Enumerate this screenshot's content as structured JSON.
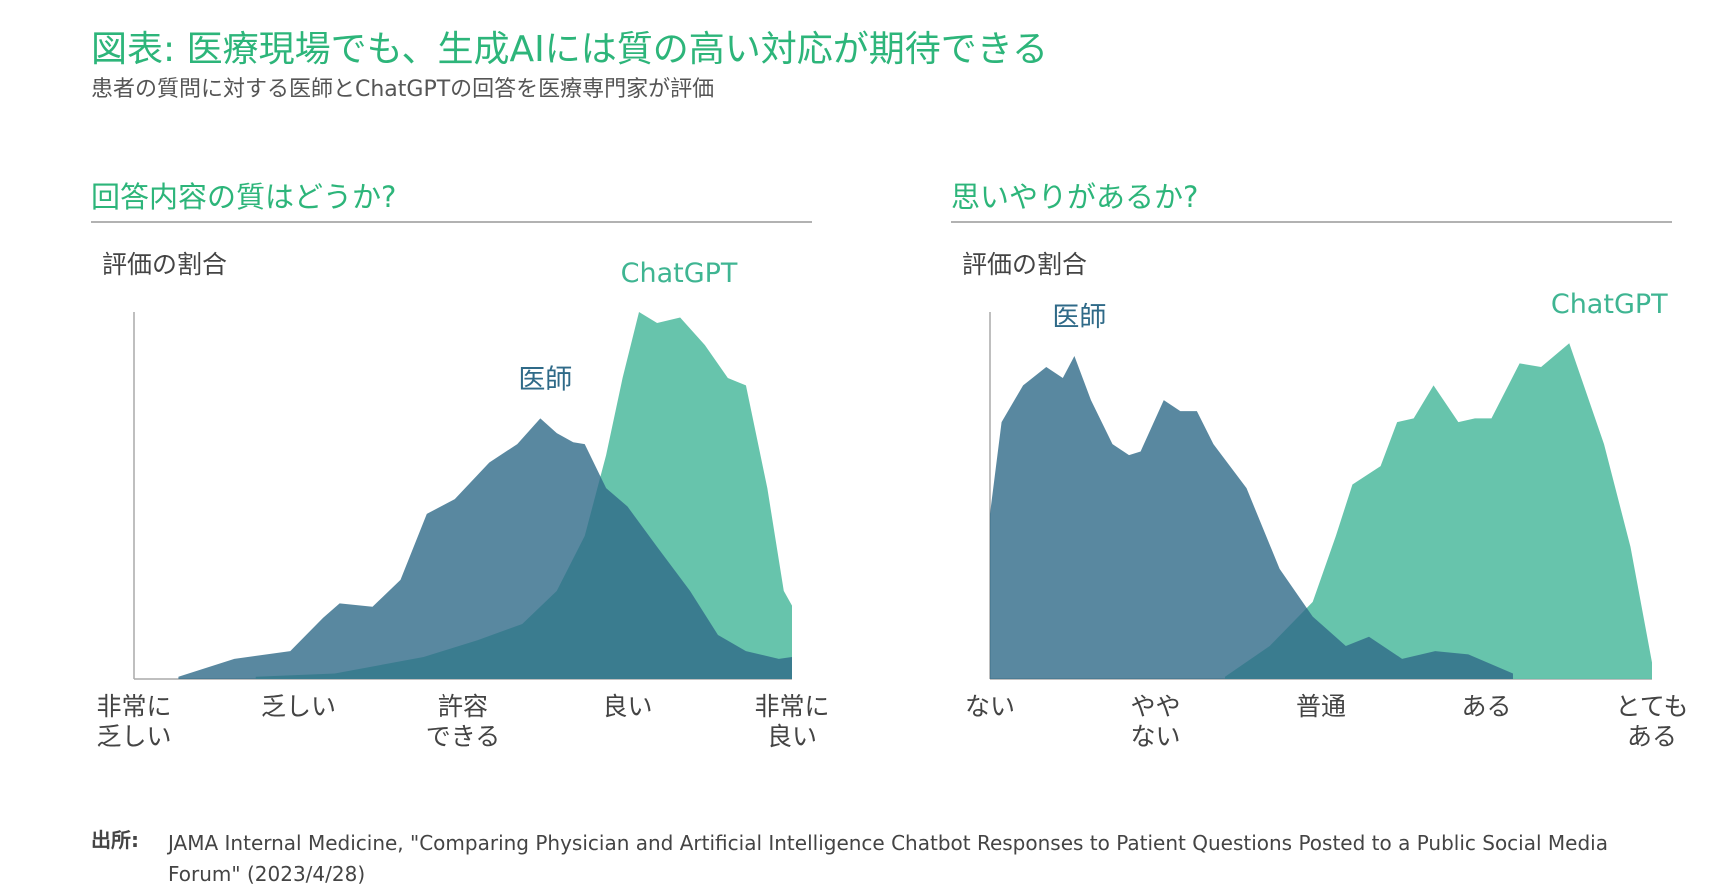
{
  "header": {
    "title": "図表: 医療現場でも、生成AIには質の高い対応が期待できる",
    "subtitle": "患者の質問に対する医師とChatGPTの回答を医療専門家が評価"
  },
  "chart_data": [
    {
      "type": "area",
      "title": "回答内容の質はどうか?",
      "ylabel": "評価の割合",
      "xlim": [
        1,
        5
      ],
      "ylim": [
        0,
        100
      ],
      "xticks": [
        {
          "value": 1,
          "label": "非常に\n乏しい"
        },
        {
          "value": 2,
          "label": "乏しい"
        },
        {
          "value": 3,
          "label": "許容\nできる"
        },
        {
          "value": 4,
          "label": "良い"
        },
        {
          "value": 5,
          "label": "非常に\n良い"
        }
      ],
      "series": [
        {
          "name": "ChatGPT",
          "color": "#5fc1a8",
          "x": [
            1.74,
            2.22,
            2.76,
            3.09,
            3.36,
            3.57,
            3.74,
            3.87,
            3.97,
            4.07,
            4.18,
            4.32,
            4.47,
            4.61,
            4.72,
            4.85,
            4.95,
            5.0
          ],
          "values": [
            0.6,
            1.5,
            6,
            10.6,
            15,
            24,
            39,
            61,
            82,
            100,
            97,
            98.5,
            91,
            82,
            80,
            52,
            24,
            20
          ]
        },
        {
          "name": "医師",
          "color": "#2f6a88",
          "x": [
            1.27,
            1.61,
            1.95,
            2.15,
            2.25,
            2.45,
            2.62,
            2.78,
            2.95,
            3.16,
            3.33,
            3.47,
            3.57,
            3.67,
            3.74,
            3.87,
            4.0,
            4.18,
            4.38,
            4.55,
            4.72,
            4.92,
            5.0
          ],
          "values": [
            0.6,
            5.5,
            7.6,
            16.7,
            20.6,
            19.7,
            27,
            45,
            49,
            59,
            64,
            71,
            67,
            64.5,
            64,
            52,
            47,
            36,
            24,
            12,
            7.6,
            5.5,
            6
          ]
        }
      ]
    },
    {
      "type": "area",
      "title": "思いやりがあるか?",
      "ylabel": "評価の割合",
      "xlim": [
        1,
        5
      ],
      "ylim": [
        0,
        100
      ],
      "xticks": [
        {
          "value": 1,
          "label": "ない"
        },
        {
          "value": 2,
          "label": "やや\nない"
        },
        {
          "value": 3,
          "label": "普通"
        },
        {
          "value": 4,
          "label": "ある"
        },
        {
          "value": 5,
          "label": "とても\nある"
        }
      ],
      "series": [
        {
          "name": "ChatGPT",
          "color": "#5fc1a8",
          "x": [
            2.42,
            2.69,
            2.95,
            3.09,
            3.19,
            3.36,
            3.46,
            3.56,
            3.68,
            3.83,
            3.93,
            4.03,
            4.2,
            4.33,
            4.5,
            4.71,
            4.87,
            5.0
          ],
          "values": [
            0.6,
            9,
            21,
            39,
            53,
            58,
            70,
            71,
            80,
            70,
            71,
            71,
            86,
            85,
            91.5,
            64,
            36,
            4.5
          ]
        },
        {
          "name": "医師",
          "color": "#2f6a88",
          "x": [
            1,
            1.07,
            1.2,
            1.34,
            1.44,
            1.51,
            1.61,
            1.74,
            1.84,
            1.91,
            2.05,
            2.15,
            2.25,
            2.35,
            2.55,
            2.75,
            2.95,
            3.15,
            3.29,
            3.49,
            3.69,
            3.89,
            4.16
          ],
          "values": [
            45,
            70,
            80,
            85,
            82,
            88,
            76,
            64,
            61,
            62,
            76,
            73,
            73,
            64,
            52,
            30,
            17,
            9,
            11.5,
            5.5,
            7.6,
            6.7,
            1.5
          ]
        }
      ]
    }
  ],
  "source": {
    "label": "出所:",
    "text": "JAMA Internal Medicine, \"Comparing Physician and Artificial Intelligence Chatbot Responses to Patient Questions Posted to a Public Social Media Forum\" (2023/4/28)"
  }
}
